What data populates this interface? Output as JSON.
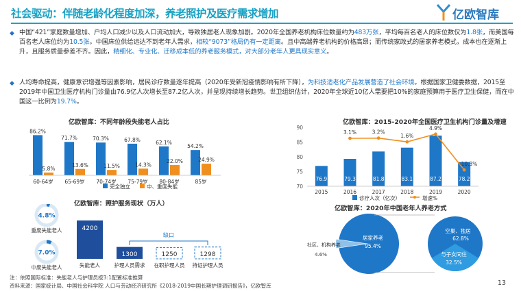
{
  "page": {
    "title": "社会驱动：伴随老龄化程度加深，养老照护及医疗需求增加",
    "logo_text": "亿欧智库",
    "page_number": "13",
    "colors": {
      "blue": "#1f77c8",
      "orange": "#f08f1e",
      "teal": "#17a1c4"
    }
  },
  "paragraphs": [
    {
      "bullet": "◆",
      "segments": [
        {
          "t": "中国“421”家庭数量增加、户均人口减少以及人口流动加大，导致独居老人现象加剧。2020年全国养老机构床位数量约为",
          "hl": false
        },
        {
          "t": "483万张",
          "hl": true
        },
        {
          "t": "，平均每百名老人的床位数仅为",
          "hl": false
        },
        {
          "t": "1.8张",
          "hl": true
        },
        {
          "t": "，而美国每百名老人床位约为",
          "hl": false
        },
        {
          "t": "10.5张",
          "hl": true
        },
        {
          "t": "。中国床位供给远达不到老年人需求，",
          "hl": false
        },
        {
          "t": "相较“9073”格局仍有一定距离",
          "hl": true
        },
        {
          "t": "。且中高端养老机构的价格高昂；而传统家政式的居家养老模式，成本也在逐渐上升，且服务质量参差不齐。因此，",
          "hl": false
        },
        {
          "t": "精细化、专业化、迁移成本低的养老服务模式，对大部分老年人更具现实意义",
          "hl": true
        },
        {
          "t": "。",
          "hl": false
        }
      ]
    },
    {
      "bullet": "◆",
      "segments": [
        {
          "t": "人均寿命提高，健康意识增强等因素影响，居民诊疗数量逐年提高（2020年受新冠疫情影响有所下降），",
          "hl": false
        },
        {
          "t": "为科技适老化产品发展营造了社会环境",
          "hl": true
        },
        {
          "t": "。根据国家卫健委数据，2015至2019年中国卫生医疗机构门诊量由76.9亿人次增长至87.2亿人次，并呈现持续增长趋势。世卫组织估计，2020年全球近10亿人需要把10%的家庭预算用于医疗卫生保健，而在中国这一比例为",
          "hl": false
        },
        {
          "t": "19.7%",
          "hl": true
        },
        {
          "t": "。",
          "hl": false
        }
      ]
    }
  ],
  "chart_data": [
    {
      "type": "bar",
      "title": "亿欧智库：不同年龄段失能老人占比",
      "categories": [
        "60-64岁",
        "65-69岁",
        "70-74岁",
        "75-79岁",
        "80-84岁",
        "85岁"
      ],
      "series": [
        {
          "name": "完全独立",
          "color": "#1f77c8",
          "values": [
            86.2,
            71.7,
            70.3,
            67.8,
            62.1,
            54.2
          ],
          "labels": [
            "86.2%",
            "71.7%",
            "70.3%",
            "67.8%",
            "62.1%",
            "54.2%"
          ]
        },
        {
          "name": "中、重度失能",
          "color": "#f08f1e",
          "values": [
            5.8,
            13.6,
            11.5,
            14.3,
            22.0,
            24.9
          ],
          "labels": [
            "5.8%",
            "13.6%",
            "11.5%",
            "14.3%",
            "22.0%",
            "24.9%"
          ]
        }
      ],
      "ylim": [
        0,
        100
      ]
    },
    {
      "type": "bar+line",
      "title": "亿欧智库：2015-2020年全国医疗卫生机构门诊量及增速",
      "categories": [
        "2015",
        "2016",
        "2017",
        "2018",
        "2019",
        "2020"
      ],
      "bar_series": {
        "name": "诊疗人次（亿次）",
        "color": "#1f77c8",
        "values": [
          76.9,
          79.3,
          81.8,
          83.1,
          87.2,
          78.2
        ],
        "labels": [
          "76.9",
          "79.3",
          "81.8",
          "83.1",
          "87.2",
          "78.2"
        ]
      },
      "line_series": {
        "name": "增速%",
        "color": "#f08f1e",
        "values": [
          null,
          3.1,
          3.2,
          1.6,
          4.9,
          -10.3
        ],
        "labels": [
          "",
          "3.1%",
          "3.2%",
          "1.6%",
          "4.9%",
          "-10.3%"
        ]
      },
      "y_ticks": [
        "70",
        "75",
        "80",
        "85",
        "90"
      ],
      "ylim": [
        70,
        90
      ]
    },
    {
      "type": "infographic",
      "title": "亿欧智库：照护服务现状（万人）",
      "donuts": [
        {
          "value": 4.8,
          "label": "4.8%",
          "caption": "重度失能老人"
        },
        {
          "value": 7.0,
          "label": "7.0%",
          "caption": "中度失能老人"
        }
      ],
      "bars": [
        {
          "value": 4200,
          "label": "4200",
          "caption": "失能老人"
        },
        {
          "value": 1300,
          "label": "1300",
          "caption": "护理人员需求"
        },
        {
          "value": 1250,
          "label": "1250",
          "caption": "在职护理人员"
        },
        {
          "value": 1298,
          "label": "1298",
          "caption": "持证护理人员"
        }
      ],
      "gap_label": "缺口"
    },
    {
      "type": "pie",
      "title": "亿欧智库：2020年中国老年人养老方式",
      "slices": [
        {
          "name": "居家养老",
          "value": 95.4,
          "label": "95.4%"
        },
        {
          "name": "社区、机构养老",
          "value": 4.6,
          "label": "4.6%"
        }
      ],
      "sub_slices": [
        {
          "name": "空巢、独居",
          "value": 62.8,
          "label": "62.8%"
        },
        {
          "name": "与子女同住",
          "value": 32.5,
          "label": "32.5%"
        }
      ]
    }
  ],
  "notes": {
    "line1": "注：依照国际标准：失能老人与护理员按3:1配置标准推算",
    "line2": "资料来源：国家统计局、中国社会科学院 人口与劳动经济研究所《2018-2019中国长期护理调研报告》，亿欧智库"
  }
}
